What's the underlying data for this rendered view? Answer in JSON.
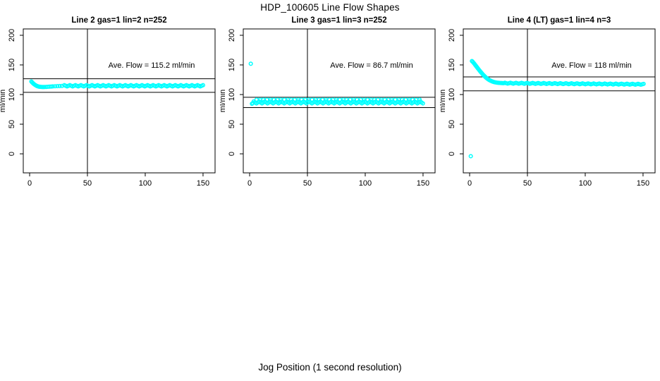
{
  "figure": {
    "title": "HDP_100605  Line Flow Shapes",
    "xlabel": "Jog Position (1 second resolution)",
    "background_color": "#ffffff",
    "axis_color": "#000000",
    "point_color": "#00ffff"
  },
  "chart_data": [
    {
      "type": "scatter",
      "title": "Line 2 gas=1 lin=2 n=252",
      "ylabel": "ml/min",
      "annotation": "Ave. Flow =  115.2  ml/min",
      "ave_flow_ml_min": 115.2,
      "n_points": 252,
      "xlim": [
        -5.5,
        160.4
      ],
      "ylim": [
        -32.1,
        210.7
      ],
      "x_ticks": [
        0,
        50,
        100,
        150
      ],
      "y_ticks": [
        0,
        50,
        100,
        150,
        200
      ],
      "vline_x": 50,
      "ref_lines_y": [
        126.7,
        103.7
      ],
      "grid": false,
      "points": [
        [
          1.5,
          122
        ],
        [
          2.2,
          120.5
        ],
        [
          2.9,
          119.1
        ],
        [
          3.6,
          117.9
        ],
        [
          4.3,
          116.8
        ],
        [
          5,
          115.9
        ],
        [
          5.7,
          115.1
        ],
        [
          6.4,
          114.4
        ],
        [
          7.1,
          113.9
        ],
        [
          7.8,
          113.5
        ],
        [
          8.6,
          113.2
        ],
        [
          9.4,
          113
        ],
        [
          10.3,
          112.8
        ],
        [
          11.2,
          112.7
        ],
        [
          12.2,
          112.7
        ],
        [
          13.2,
          112.8
        ],
        [
          14.4,
          112.9
        ],
        [
          15.6,
          113.1
        ],
        [
          17,
          113.3
        ],
        [
          18.5,
          113.5
        ],
        [
          20,
          113.8
        ],
        [
          22,
          114
        ],
        [
          24,
          114.2
        ],
        [
          26,
          114.4
        ],
        [
          28,
          114.5
        ]
      ],
      "band": {
        "x_from": 30,
        "x_to": 150,
        "step": 1.2,
        "y_start": 114.8,
        "y_end": 114.8,
        "halfwidth": 1.0
      }
    },
    {
      "type": "scatter",
      "title": "Line 3 gas=1 lin=3 n=252",
      "ylabel": "ml/min",
      "annotation": "Ave. Flow =  86.7  ml/min",
      "ave_flow_ml_min": 86.7,
      "n_points": 252,
      "xlim": [
        -5.5,
        160.4
      ],
      "ylim": [
        -32.1,
        210.7
      ],
      "x_ticks": [
        0,
        50,
        100,
        150
      ],
      "y_ticks": [
        0,
        50,
        100,
        150,
        200
      ],
      "vline_x": 50,
      "ref_lines_y": [
        95.4,
        78.0
      ],
      "grid": false,
      "points": [
        [
          1,
          152
        ],
        [
          2,
          84.5
        ],
        [
          2.8,
          85.6
        ]
      ],
      "band": {
        "x_from": 3.5,
        "x_to": 150,
        "step": 1.2,
        "y_start": 86.7,
        "y_end": 86.7,
        "halfwidth": 1.6
      },
      "extra_dots": {
        "x_from": 6,
        "x_to": 148,
        "step": 3,
        "y": 91.5
      }
    },
    {
      "type": "scatter",
      "title": "Line 4 (LT) gas=1 lin=4 n=3",
      "ylabel": "ml/min",
      "annotation": "Ave. Flow =  118  ml/min",
      "ave_flow_ml_min": 118,
      "n_points": 3,
      "xlim": [
        -5.5,
        160.4
      ],
      "ylim": [
        -32.1,
        210.7
      ],
      "x_ticks": [
        0,
        50,
        100,
        150
      ],
      "y_ticks": [
        0,
        50,
        100,
        150,
        200
      ],
      "vline_x": 50,
      "ref_lines_y": [
        129.8,
        106.2
      ],
      "grid": false,
      "points": [
        [
          1,
          -4
        ],
        [
          2,
          156.5
        ],
        [
          2.7,
          155.2
        ],
        [
          3.4,
          153.6
        ],
        [
          4.1,
          151.9
        ],
        [
          4.8,
          150.1
        ],
        [
          5.5,
          148.3
        ],
        [
          6.2,
          146.5
        ],
        [
          6.9,
          144.7
        ],
        [
          7.6,
          143
        ],
        [
          8.3,
          141.2
        ],
        [
          9,
          139.5
        ],
        [
          9.7,
          137.9
        ],
        [
          10.4,
          136.3
        ],
        [
          11.1,
          134.7
        ],
        [
          11.8,
          133.2
        ],
        [
          12.5,
          131.8
        ],
        [
          13.2,
          130.4
        ],
        [
          13.9,
          129.1
        ],
        [
          14.6,
          127.9
        ],
        [
          15.3,
          126.8
        ],
        [
          16,
          125.8
        ],
        [
          16.8,
          124.8
        ],
        [
          17.6,
          123.9
        ],
        [
          18.4,
          123.1
        ],
        [
          19.2,
          122.4
        ],
        [
          20,
          121.8
        ],
        [
          20.9,
          121.2
        ],
        [
          21.8,
          120.8
        ],
        [
          22.7,
          120.4
        ],
        [
          23.6,
          120.1
        ],
        [
          24.5,
          119.9
        ],
        [
          25.5,
          119.7
        ],
        [
          26.5,
          119.5
        ],
        [
          27.5,
          119.4
        ],
        [
          28.5,
          119.3
        ],
        [
          29.5,
          119.2
        ]
      ],
      "band": {
        "x_from": 30.5,
        "x_to": 150,
        "step": 1.2,
        "y_start": 119.2,
        "y_end": 117.3,
        "halfwidth": 0.7
      }
    }
  ]
}
